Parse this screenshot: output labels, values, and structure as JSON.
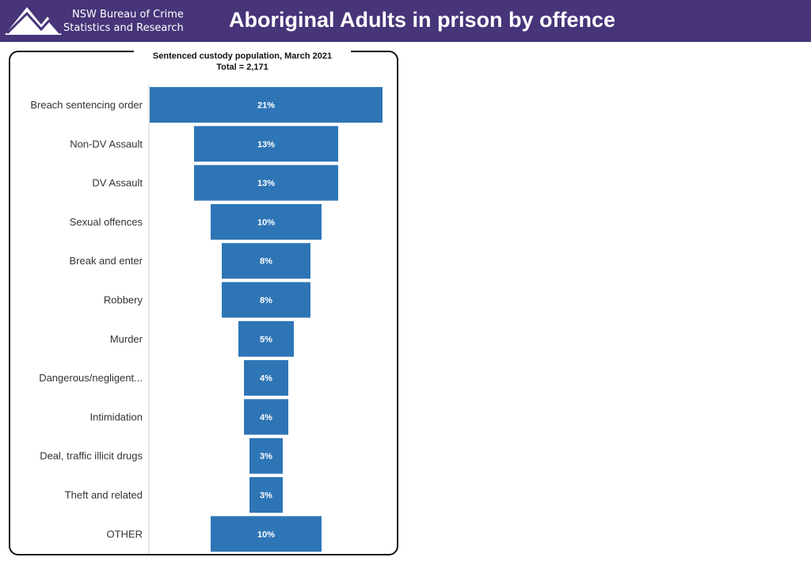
{
  "header": {
    "org_line1": "NSW Bureau of Crime",
    "org_line2": "Statistics and Research",
    "title": "Aboriginal Adults in prison by offence",
    "background": "#473479"
  },
  "chart_data": {
    "type": "bar",
    "subtype": "funnel",
    "orientation": "horizontal",
    "title": "Sentenced custody population, March 2021",
    "subtitle": "Total = 2,171",
    "categories": [
      "Breach sentencing order",
      "Non-DV Assault",
      "DV Assault",
      "Sexual offences",
      "Break and enter",
      "Robbery",
      "Murder",
      "Dangerous/negligent...",
      "Intimidation",
      "Deal, traffic illicit drugs",
      "Theft and related",
      "OTHER"
    ],
    "values": [
      21,
      13,
      13,
      10,
      8,
      8,
      5,
      4,
      4,
      3,
      3,
      10
    ],
    "data_labels": [
      "21%",
      "13%",
      "13%",
      "10%",
      "8%",
      "8%",
      "5%",
      "4%",
      "4%",
      "3%",
      "3%",
      "10%"
    ],
    "units": "%",
    "bar_color": "#2E75B6",
    "label_color": "#ffffff",
    "grid": false,
    "legend": "none"
  }
}
